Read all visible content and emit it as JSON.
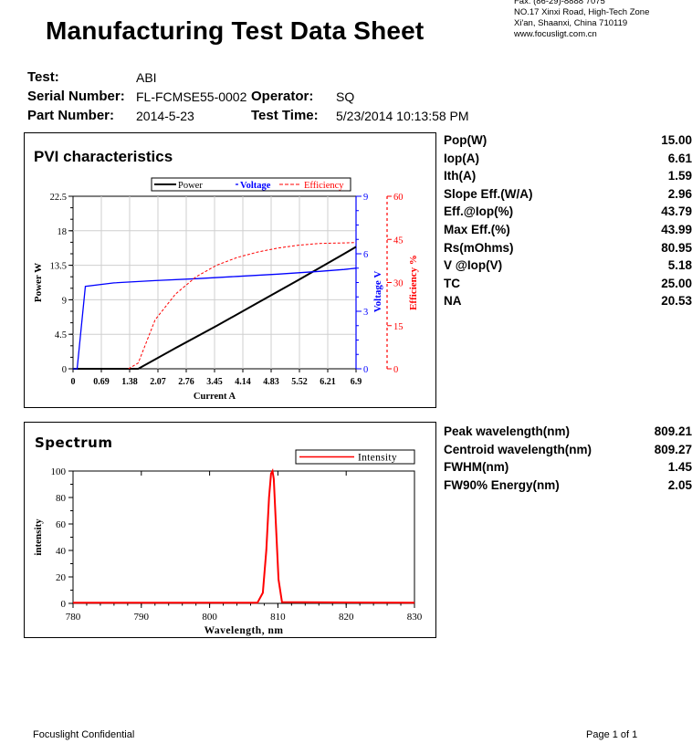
{
  "header": {
    "title": "Manufacturing Test Data Sheet",
    "address_lines": [
      "Fax: (86-29)-8888 7075",
      "NO.17 Xinxi Road, High-Tech Zone",
      "Xi'an, Shaanxi, China  710119",
      "www.focusligt.com.cn"
    ]
  },
  "info": {
    "test_label": "Test:",
    "test_value": "ABI",
    "serial_label": "Serial Number:",
    "serial_value": "FL-FCMSE55-0002",
    "operator_label": "Operator:",
    "operator_value": "SQ",
    "part_label": "Part Number:",
    "part_value": "2014-5-23",
    "time_label": "Test Time:",
    "time_value": "5/23/2014  10:13:58 PM"
  },
  "pvi_params": [
    {
      "label": "Pop(W)",
      "value": "15.00"
    },
    {
      "label": "Iop(A)",
      "value": "6.61"
    },
    {
      "label": "Ith(A)",
      "value": "1.59"
    },
    {
      "label": "Slope Eff.(W/A)",
      "value": "2.96"
    },
    {
      "label": "Eff.@Iop(%)",
      "value": "43.79"
    },
    {
      "label": "Max Eff.(%)",
      "value": "43.99"
    },
    {
      "label": "Rs(mOhms)",
      "value": "80.95"
    },
    {
      "label": "V @Iop(V)",
      "value": "5.18"
    },
    {
      "label": "TC",
      "value": "25.00"
    },
    {
      "label": "NA",
      "value": "20.53"
    }
  ],
  "spectrum_params": [
    {
      "label": "Peak wavelength(nm)",
      "value": "809.21"
    },
    {
      "label": "Centroid wavelength(nm)",
      "value": "809.27"
    },
    {
      "label": "FWHM(nm)",
      "value": "1.45"
    },
    {
      "label": "FW90% Energy(nm)",
      "value": "2.05"
    }
  ],
  "footer": {
    "left": "Focuslight Confidential",
    "right": "Page 1 of 1"
  },
  "chart_data": [
    {
      "type": "line",
      "title": "PVI characteristics",
      "xlabel": "Current A",
      "ylabel": "Power W",
      "y2label": "Voltage V",
      "y3label": "Efficiency %",
      "xticks": [
        "0",
        "0.69",
        "1.38",
        "2.07",
        "2.76",
        "3.45",
        "4.14",
        "4.83",
        "5.52",
        "6.21",
        "6.9"
      ],
      "yticks": [
        "0",
        "4.5",
        "9",
        "13.5",
        "18",
        "22.5"
      ],
      "y2ticks": [
        "0",
        "3",
        "6",
        "9"
      ],
      "y3ticks": [
        "0",
        "15",
        "30",
        "45",
        "60"
      ],
      "xlim": [
        0,
        6.9
      ],
      "ylim": [
        0,
        22.5
      ],
      "y2lim": [
        0,
        9
      ],
      "y3lim": [
        0,
        60
      ],
      "legend": [
        "Power",
        "Voltage",
        "Efficiency"
      ],
      "colors": {
        "power": "#000000",
        "voltage": "#0000ff",
        "efficiency": "#ff0000"
      },
      "series": [
        {
          "name": "Power",
          "axis": "y",
          "x": [
            0,
            1.59,
            2.5,
            3.5,
            4.5,
            5.5,
            6.61,
            6.9
          ],
          "values": [
            0,
            0,
            2.7,
            5.6,
            8.6,
            11.6,
            15.0,
            15.9
          ]
        },
        {
          "name": "Voltage",
          "axis": "y2",
          "x": [
            0,
            0.1,
            0.3,
            1,
            2,
            3,
            4,
            5,
            6,
            6.61,
            6.9
          ],
          "values": [
            0,
            0,
            4.3,
            4.48,
            4.6,
            4.7,
            4.82,
            4.94,
            5.08,
            5.18,
            5.25
          ]
        },
        {
          "name": "Efficiency",
          "axis": "y3",
          "x": [
            1.35,
            1.59,
            2.0,
            2.5,
            3.0,
            3.5,
            4.0,
            4.5,
            5.0,
            5.5,
            6.0,
            6.61,
            6.9
          ],
          "values": [
            0,
            2,
            17,
            26,
            32,
            36,
            38.7,
            40.6,
            42.0,
            43.0,
            43.6,
            43.79,
            43.9
          ]
        }
      ]
    },
    {
      "type": "line",
      "title": "Spectrum",
      "xlabel": "Wavelength, nm",
      "ylabel": "intensity",
      "xticks": [
        "780",
        "790",
        "800",
        "810",
        "820",
        "830"
      ],
      "yticks": [
        "0",
        "20",
        "40",
        "60",
        "80",
        "100"
      ],
      "xlim": [
        780,
        830
      ],
      "ylim": [
        0,
        100
      ],
      "legend": [
        "Intensity"
      ],
      "colors": {
        "intensity": "#ff0000"
      },
      "series": [
        {
          "name": "Intensity",
          "x": [
            780,
            807.0,
            807.8,
            808.3,
            808.7,
            809.0,
            809.21,
            809.4,
            809.7,
            810.1,
            810.6,
            830
          ],
          "values": [
            0.5,
            0.5,
            8,
            40,
            80,
            98,
            100,
            94,
            60,
            18,
            1,
            0.5
          ]
        }
      ]
    }
  ]
}
